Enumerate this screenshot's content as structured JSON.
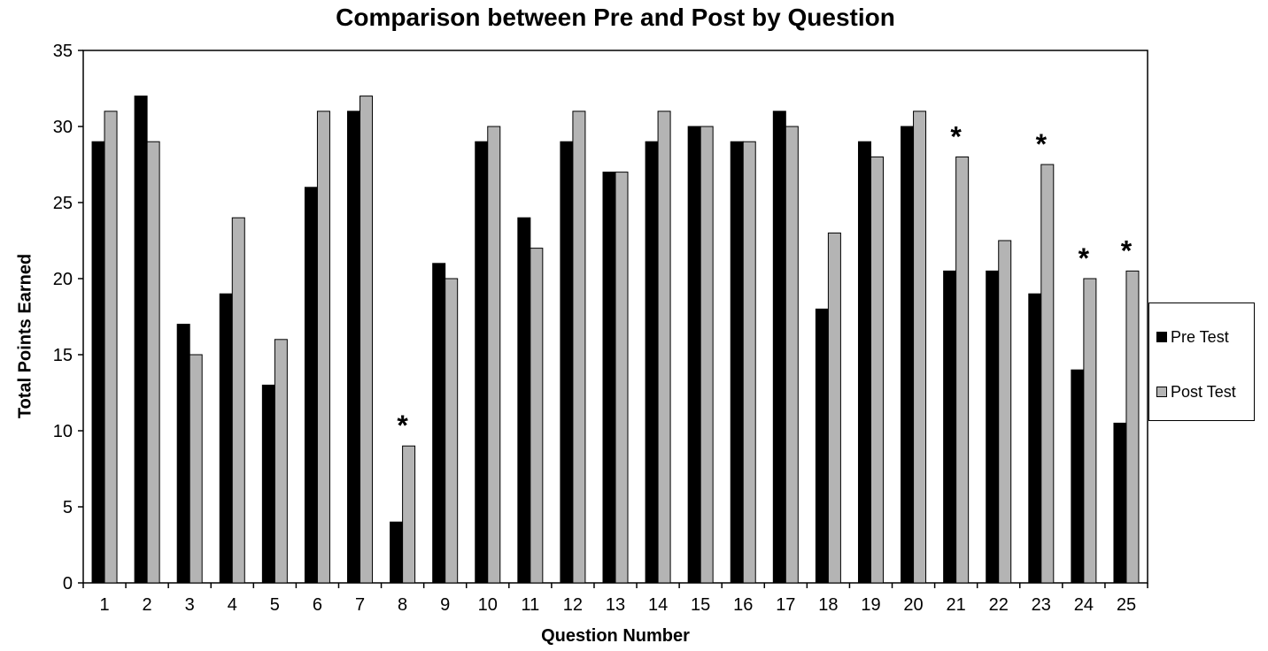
{
  "chart_data": {
    "type": "bar",
    "title": "Comparison between Pre and Post by Question",
    "xlabel": "Question Number",
    "ylabel": "Total Points Earned",
    "ylim": [
      0,
      35
    ],
    "yticks": [
      0,
      5,
      10,
      15,
      20,
      25,
      30,
      35
    ],
    "grid": false,
    "legend_position": "right",
    "categories": [
      "1",
      "2",
      "3",
      "4",
      "5",
      "6",
      "7",
      "8",
      "9",
      "10",
      "11",
      "12",
      "13",
      "14",
      "15",
      "16",
      "17",
      "18",
      "19",
      "20",
      "21",
      "22",
      "23",
      "24",
      "25"
    ],
    "series": [
      {
        "name": "Pre Test",
        "color": "#000000",
        "values": [
          29,
          32,
          17,
          19,
          13,
          26,
          31,
          4,
          21,
          29,
          24,
          29,
          27,
          29,
          30,
          29,
          31,
          18,
          29,
          30,
          20.5,
          20.5,
          19,
          14,
          10.5
        ]
      },
      {
        "name": "Post Test",
        "color": "#b4b4b4",
        "values": [
          31,
          29,
          15,
          24,
          16,
          31,
          32,
          9,
          20,
          30,
          22,
          31,
          27,
          31,
          30,
          29,
          30,
          23,
          28,
          31,
          28,
          22.5,
          27.5,
          20,
          20.5
        ]
      }
    ],
    "annotations": [
      {
        "category": "8",
        "text": "*"
      },
      {
        "category": "21",
        "text": "*"
      },
      {
        "category": "23",
        "text": "*"
      },
      {
        "category": "24",
        "text": "*"
      },
      {
        "category": "25",
        "text": "*"
      }
    ]
  }
}
